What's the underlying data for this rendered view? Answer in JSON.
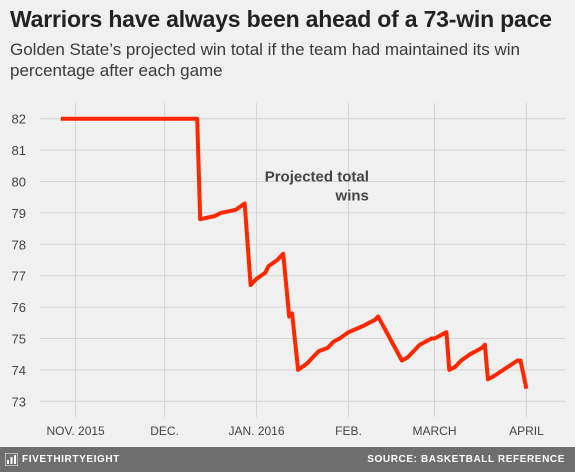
{
  "title": "Warriors have always been ahead of a 73-win pace",
  "subtitle": "Golden State’s projected win total if the team had maintained its win percentage after each game",
  "footer": {
    "brand": "FIVETHIRTYEIGHT",
    "source": "SOURCE: BASKETBALL REFERENCE"
  },
  "chart_data": {
    "type": "line",
    "title": "Warriors have always been ahead of a 73-win pace",
    "subtitle": "Golden State’s projected win total if the team had maintained its win percentage after each game",
    "xlabel": "",
    "ylabel": "",
    "ylim": [
      72.5,
      82.5
    ],
    "xlim": [
      "2015-10-20",
      "2016-04-14"
    ],
    "yticks": [
      73,
      74,
      75,
      76,
      77,
      78,
      79,
      80,
      81,
      82
    ],
    "xticks": [
      {
        "date": "2015-11-01",
        "label": "NOV. 2015"
      },
      {
        "date": "2015-12-01",
        "label": "DEC."
      },
      {
        "date": "2016-01-01",
        "label": "JAN. 2016"
      },
      {
        "date": "2016-02-01",
        "label": "FEB."
      },
      {
        "date": "2016-03-01",
        "label": "MARCH"
      },
      {
        "date": "2016-04-01",
        "label": "APRIL"
      }
    ],
    "grid": true,
    "color": "#ff2700",
    "annotation": {
      "text": [
        "Projected total",
        "wins"
      ],
      "date": "2016-01-20",
      "value": 80
    },
    "series": [
      {
        "points": [
          [
            "2015-10-27",
            82.0
          ],
          [
            "2015-12-12",
            82.0
          ],
          [
            "2015-12-13",
            78.8
          ],
          [
            "2015-12-18",
            78.9
          ],
          [
            "2015-12-20",
            79.0
          ],
          [
            "2015-12-25",
            79.1
          ],
          [
            "2015-12-28",
            79.3
          ],
          [
            "2015-12-30",
            76.7
          ],
          [
            "2016-01-01",
            76.9
          ],
          [
            "2016-01-04",
            77.1
          ],
          [
            "2016-01-05",
            77.3
          ],
          [
            "2016-01-08",
            77.5
          ],
          [
            "2016-01-10",
            77.7
          ],
          [
            "2016-01-12",
            75.7
          ],
          [
            "2016-01-13",
            75.8
          ],
          [
            "2016-01-15",
            74.0
          ],
          [
            "2016-01-18",
            74.2
          ],
          [
            "2016-01-20",
            74.4
          ],
          [
            "2016-01-22",
            74.6
          ],
          [
            "2016-01-25",
            74.7
          ],
          [
            "2016-01-27",
            74.9
          ],
          [
            "2016-01-29",
            75.0
          ],
          [
            "2016-02-01",
            75.2
          ],
          [
            "2016-02-06",
            75.4
          ],
          [
            "2016-02-10",
            75.6
          ],
          [
            "2016-02-11",
            75.7
          ],
          [
            "2016-02-19",
            74.3
          ],
          [
            "2016-02-21",
            74.4
          ],
          [
            "2016-02-23",
            74.6
          ],
          [
            "2016-02-25",
            74.8
          ],
          [
            "2016-02-27",
            74.9
          ],
          [
            "2016-02-29",
            75.0
          ],
          [
            "2016-03-01",
            75.0
          ],
          [
            "2016-03-03",
            75.1
          ],
          [
            "2016-03-05",
            75.2
          ],
          [
            "2016-03-06",
            74.0
          ],
          [
            "2016-03-08",
            74.1
          ],
          [
            "2016-03-10",
            74.3
          ],
          [
            "2016-03-13",
            74.5
          ],
          [
            "2016-03-15",
            74.6
          ],
          [
            "2016-03-17",
            74.7
          ],
          [
            "2016-03-18",
            74.8
          ],
          [
            "2016-03-19",
            73.7
          ],
          [
            "2016-03-21",
            73.8
          ],
          [
            "2016-03-29",
            74.3
          ],
          [
            "2016-03-30",
            74.3
          ],
          [
            "2016-04-01",
            73.4
          ]
        ]
      }
    ]
  }
}
